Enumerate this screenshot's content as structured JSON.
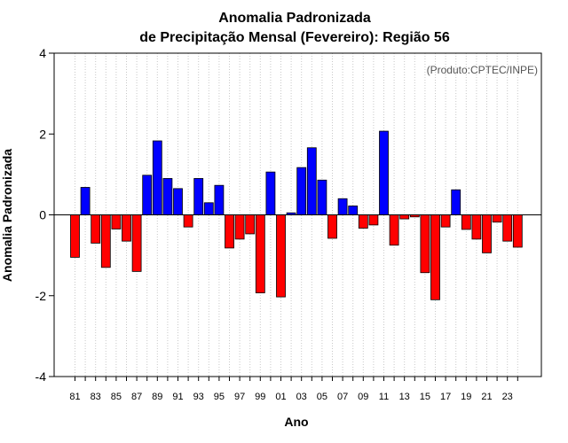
{
  "chart_data": {
    "type": "bar",
    "title_line1": "Anomalia Padronizada",
    "title_line2": "de Precipitação Mensal (Fevereiro): Região 56",
    "xlabel": "Ano",
    "ylabel": "Anomalia Padronizada",
    "credit": "(Produto:CPTEC/INPE)",
    "ylim": [
      -4,
      4
    ],
    "yticks": [
      "4",
      "2",
      "0",
      "-2",
      "-4"
    ],
    "ytick_values": [
      4,
      2,
      0,
      -2,
      -4
    ],
    "grid": "vertical dotted",
    "colors": {
      "positive": "#0000ff",
      "negative": "#ff0000",
      "grid": "#c8c8c8"
    },
    "categories": [
      "81",
      "82",
      "83",
      "84",
      "85",
      "86",
      "87",
      "88",
      "89",
      "90",
      "91",
      "92",
      "93",
      "94",
      "95",
      "96",
      "97",
      "98",
      "99",
      "00",
      "01",
      "02",
      "03",
      "04",
      "05",
      "06",
      "07",
      "08",
      "09",
      "10",
      "11",
      "12",
      "13",
      "14",
      "15",
      "16",
      "17",
      "18",
      "19",
      "20",
      "21",
      "22",
      "23",
      "24"
    ],
    "xtick_labels": [
      "81",
      "83",
      "85",
      "87",
      "89",
      "91",
      "93",
      "95",
      "97",
      "99",
      "01",
      "03",
      "05",
      "07",
      "09",
      "11",
      "13",
      "15",
      "17",
      "19",
      "21",
      "23"
    ],
    "values": [
      -1.05,
      0.68,
      -0.7,
      -1.3,
      -0.35,
      -0.65,
      -1.4,
      0.98,
      1.83,
      0.9,
      0.65,
      -0.3,
      0.9,
      0.3,
      0.73,
      -0.82,
      -0.6,
      -0.47,
      -1.93,
      1.06,
      -2.03,
      0.05,
      1.17,
      1.66,
      0.86,
      -0.58,
      0.4,
      0.22,
      -0.33,
      -0.25,
      2.07,
      -0.75,
      -0.1,
      -0.05,
      -1.43,
      -2.1,
      -0.3,
      0.62,
      -0.36,
      -0.6,
      -0.94,
      -0.18,
      -0.65,
      -0.8
    ]
  }
}
